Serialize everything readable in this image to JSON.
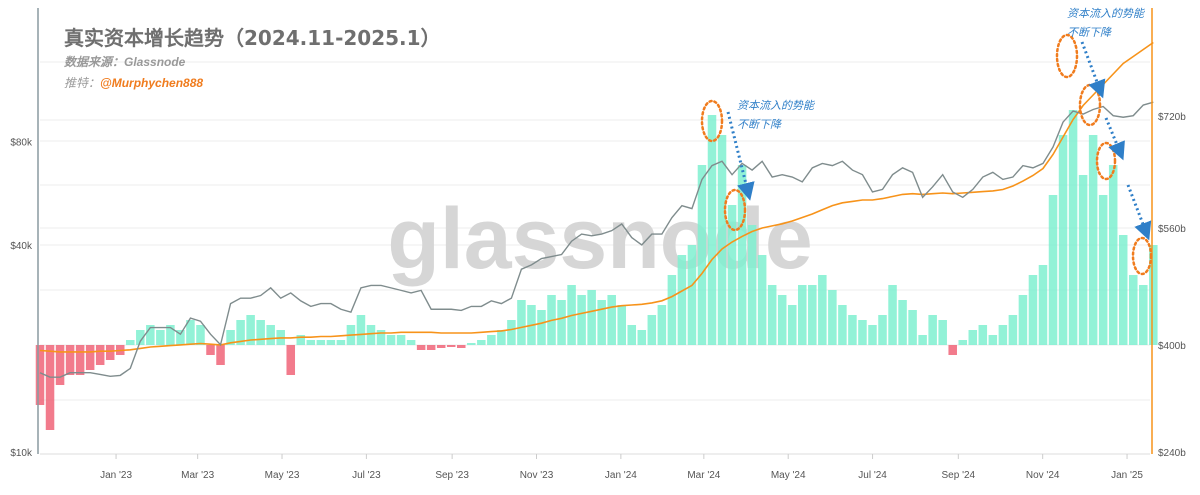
{
  "header": {
    "title": "真实资本增长趋势（2024.11-2025.1）",
    "source_label": "数据来源：Glassnode",
    "twitter_label": "推特：",
    "twitter_handle": "@Murphychen888"
  },
  "watermark": "glassnode",
  "annotations": [
    {
      "line1": "资本流入的势能",
      "line2": "不断下降"
    },
    {
      "line1": "资本流入的势能",
      "line2": "不断下降"
    }
  ],
  "colors": {
    "price": "#7f8c8d",
    "realized_cap": "#f7931a",
    "bar_pos": "#7ff0d0",
    "bar_neg": "#f06478",
    "annotation": "#2f7fc8",
    "ellipse": "#f07c1e"
  },
  "chart_data": {
    "type": "bar+line",
    "title": "真实资本增长趋势（2024.11-2025.1）",
    "start_date": "2022-11-07",
    "end_date": "2025-01-20",
    "interval": "weekly",
    "x_ticks": [
      {
        "label": "Jan '23",
        "date": "2023-01-01"
      },
      {
        "label": "Mar '23",
        "date": "2023-03-01"
      },
      {
        "label": "May '23",
        "date": "2023-05-01"
      },
      {
        "label": "Jul '23",
        "date": "2023-07-01"
      },
      {
        "label": "Sep '23",
        "date": "2023-09-01"
      },
      {
        "label": "Nov '23",
        "date": "2023-11-01"
      },
      {
        "label": "Jan '24",
        "date": "2024-01-01"
      },
      {
        "label": "Mar '24",
        "date": "2024-03-01"
      },
      {
        "label": "May '24",
        "date": "2024-05-01"
      },
      {
        "label": "Jul '24",
        "date": "2024-07-01"
      },
      {
        "label": "Sep '24",
        "date": "2024-09-01"
      },
      {
        "label": "Nov '24",
        "date": "2024-11-01"
      },
      {
        "label": "Jan '25",
        "date": "2025-01-01"
      }
    ],
    "left_axis": {
      "scale": "log",
      "ticks": [
        {
          "label": "$10k",
          "value": 10000
        },
        {
          "label": "$40k",
          "value": 40000
        },
        {
          "label": "$80k",
          "value": 80000
        }
      ]
    },
    "right_axis": {
      "scale": "linear",
      "ylim": [
        240,
        880
      ],
      "ticks": [
        {
          "label": "$240b",
          "value": 240
        },
        {
          "label": "$400b",
          "value": 400
        },
        {
          "label": "$560b",
          "value": 560
        },
        {
          "label": "$720b",
          "value": 720
        }
      ]
    },
    "series": [
      {
        "name": "Price",
        "axis": "left",
        "values": [
          17000,
          16500,
          16500,
          17000,
          17000,
          17000,
          16800,
          16600,
          16700,
          17500,
          21000,
          23000,
          23000,
          23000,
          22000,
          24500,
          24000,
          22000,
          20500,
          27000,
          28000,
          28000,
          28500,
          30000,
          28000,
          29000,
          27500,
          26500,
          27000,
          27000,
          26000,
          25500,
          30000,
          30500,
          30500,
          30000,
          29500,
          29000,
          29500,
          26000,
          26000,
          26000,
          25800,
          26500,
          26500,
          27500,
          27000,
          28000,
          34000,
          35000,
          36500,
          37000,
          37500,
          41000,
          43000,
          42500,
          43000,
          44000,
          46000,
          42000,
          40000,
          43000,
          43000,
          48000,
          52000,
          51000,
          62000,
          68000,
          70000,
          64000,
          69000,
          66000,
          70000,
          63000,
          64000,
          63000,
          61000,
          67000,
          69000,
          68000,
          70000,
          66000,
          64000,
          57000,
          58000,
          64000,
          67000,
          65000,
          55000,
          59000,
          64000,
          57000,
          55000,
          58000,
          63000,
          65000,
          62000,
          63000,
          68000,
          67000,
          69000,
          77000,
          91000,
          98000,
          96000,
          99000,
          101000,
          95000,
          94000,
          95000,
          102000,
          104000
        ]
      },
      {
        "name": "Realized Cap ($b)",
        "axis": "right",
        "values": [
          385,
          384,
          383,
          383,
          383,
          383,
          384,
          384,
          385,
          386,
          388,
          390,
          391,
          392,
          393,
          394,
          395,
          394,
          393,
          396,
          398,
          400,
          401,
          402,
          403,
          403,
          404,
          404,
          405,
          405,
          406,
          407,
          408,
          409,
          410,
          410,
          411,
          411,
          411,
          411,
          410,
          410,
          410,
          410,
          411,
          412,
          413,
          415,
          418,
          421,
          424,
          428,
          431,
          435,
          438,
          441,
          444,
          447,
          449,
          450,
          451,
          453,
          456,
          462,
          470,
          478,
          495,
          515,
          530,
          540,
          548,
          555,
          560,
          563,
          566,
          570,
          575,
          580,
          586,
          592,
          596,
          598,
          600,
          600,
          602,
          605,
          608,
          609,
          608,
          609,
          610,
          609,
          610,
          611,
          612,
          613,
          615,
          620,
          627,
          635,
          645,
          665,
          690,
          715,
          735,
          750,
          765,
          780,
          795,
          805,
          815,
          825
        ]
      },
      {
        "name": "Capital Inflow",
        "axis": "hidden",
        "ylim": [
          -110,
          340
        ],
        "values": [
          -60,
          -85,
          -40,
          -30,
          -30,
          -25,
          -20,
          -15,
          -10,
          5,
          15,
          20,
          15,
          20,
          15,
          25,
          20,
          -10,
          -20,
          15,
          25,
          30,
          25,
          20,
          15,
          -30,
          10,
          5,
          5,
          5,
          5,
          20,
          30,
          20,
          15,
          10,
          10,
          5,
          -5,
          -5,
          -3,
          -2,
          -3,
          2,
          5,
          10,
          15,
          25,
          45,
          40,
          35,
          50,
          45,
          60,
          50,
          55,
          45,
          50,
          40,
          20,
          15,
          30,
          40,
          70,
          90,
          100,
          180,
          230,
          210,
          140,
          180,
          120,
          90,
          60,
          50,
          40,
          60,
          60,
          70,
          55,
          40,
          30,
          25,
          20,
          30,
          60,
          45,
          35,
          10,
          30,
          25,
          -10,
          5,
          15,
          20,
          10,
          20,
          30,
          50,
          70,
          80,
          150,
          210,
          235,
          170,
          210,
          150,
          180,
          110,
          70,
          60,
          100
        ]
      }
    ]
  }
}
